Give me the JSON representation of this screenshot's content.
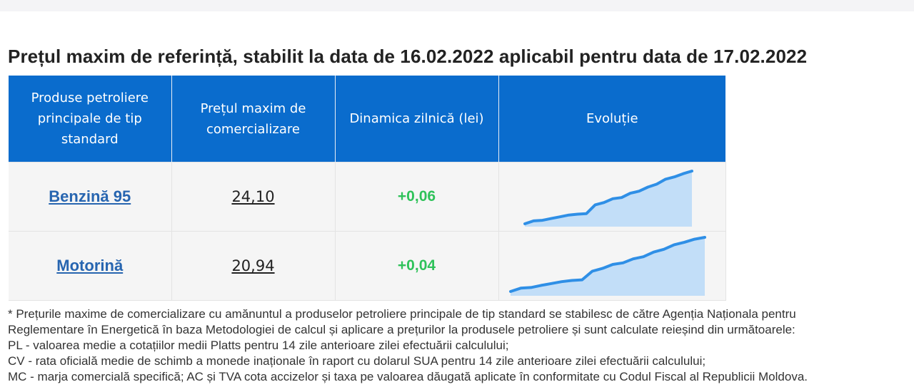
{
  "title": "Prețul maxim de referință, stabilit la data de 16.02.2022 aplicabil pentru data de 17.02.2022",
  "table": {
    "headers": [
      "Produse petroliere principale de tip standard",
      "Prețul maxim de comercializare",
      "Dinamica zilnică (lei)",
      "Evoluție"
    ],
    "rows": [
      {
        "product": "Benzină 95",
        "price": "24,10",
        "delta": "+0,06",
        "trend": [
          1.0,
          2.0,
          2.2,
          2.8,
          3.4,
          4.0,
          4.3,
          4.5,
          7.5,
          8.3,
          9.6,
          10.0,
          11.5,
          12.2,
          13.6,
          14.6,
          16.3,
          17.1,
          18.2,
          19.1
        ]
      },
      {
        "product": "Motorină",
        "price": "20,94",
        "delta": "+0,04",
        "trend": [
          1.0,
          2.1,
          2.3,
          3.0,
          3.6,
          4.2,
          4.6,
          4.8,
          7.6,
          8.5,
          9.8,
          10.3,
          11.6,
          12.3,
          13.8,
          14.7,
          16.2,
          17.0,
          18.0,
          18.6
        ]
      }
    ]
  },
  "footnote": [
    "* Prețurile maxime de comercializare cu amănuntul a produselor petroliere principale de tip standard se stabilesc de către Agenția Naționala pentru",
    "Reglementare în Energetică în baza Metodologiei de calcul și aplicare a prețurilor la produsele petroliere și sunt calculate reieșind din următoarele:",
    "PL - valoarea medie a cotațiilor medii Platts pentru 14 zile anterioare zilei efectuării calculului;",
    "CV - rata oficială medie de schimb a monede inaționale în raport cu dolarul SUA pentru 14 zile anterioare zilei efectuării calculului;",
    "MC - marja comercială specifică; AC și TVA cota accizelor și taxa pe valoarea dăugată aplicate în conformitate cu Codul Fiscal al Republicii Moldova."
  ],
  "colors": {
    "header_bg": "#0a6ccd",
    "link": "#2765b0",
    "positive": "#2fc25a",
    "spark_line": "#2f8fe6",
    "spark_fill": "#bcdcf8"
  }
}
